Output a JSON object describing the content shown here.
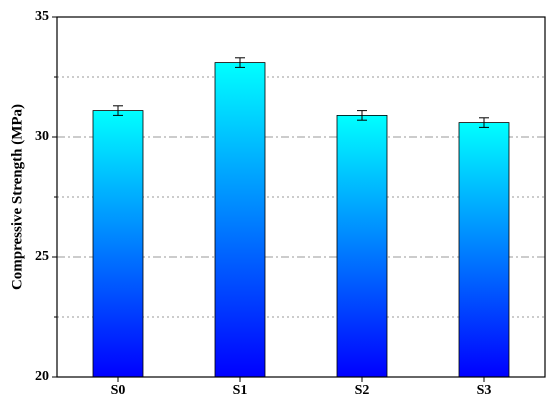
{
  "chart_data": {
    "type": "bar",
    "y_label": "Compressive Strength (MPa)",
    "categories": [
      "S0",
      "S1",
      "S2",
      "S3"
    ],
    "values": [
      31.1,
      33.1,
      30.9,
      30.6
    ],
    "errors": [
      0.2,
      0.2,
      0.2,
      0.2
    ],
    "gradient_colors": [
      "#00ffff",
      "#0000ff"
    ],
    "ylim": [
      20,
      35
    ],
    "yticks": [
      20,
      25,
      30,
      35
    ],
    "minor_yticks": [
      22.5,
      27.5,
      32.5
    ],
    "grid": true
  }
}
